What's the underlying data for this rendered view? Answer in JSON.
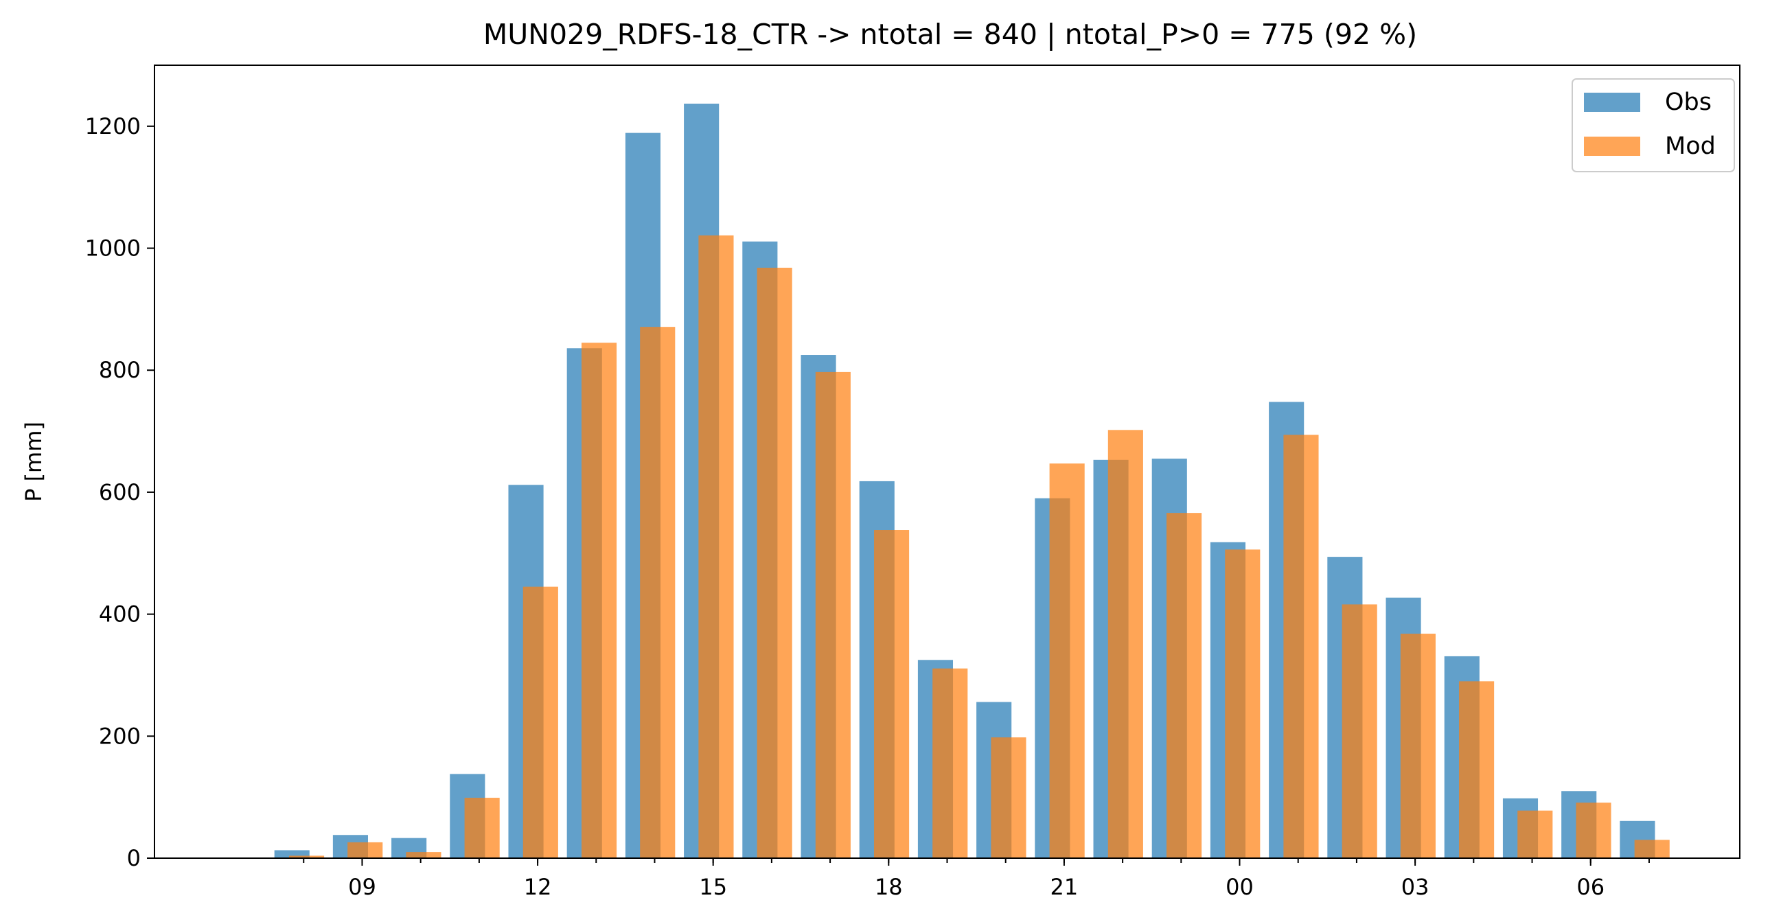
{
  "chart_data": {
    "type": "bar",
    "title": "MUN029_RDFS-18_CTR -> ntotal = 840 | ntotal_P>0 = 775 (92 %)",
    "xlabel": "",
    "ylabel": "P [mm]",
    "ylim": [
      0,
      1300
    ],
    "yticks": [
      0,
      200,
      400,
      600,
      800,
      1000,
      1200
    ],
    "x_hours": [
      8,
      9,
      10,
      11,
      12,
      13,
      14,
      15,
      16,
      17,
      18,
      19,
      20,
      21,
      22,
      23,
      24,
      25,
      26,
      27,
      28,
      29,
      30,
      31
    ],
    "x_start_hour": 8,
    "xtick_hours": [
      9,
      12,
      15,
      18,
      21,
      24,
      27,
      30
    ],
    "xtick_labels": [
      "09",
      "12",
      "15",
      "18",
      "21",
      "00",
      "03",
      "06"
    ],
    "series": [
      {
        "name": "Obs",
        "color": "#1f77b4",
        "values": [
          13,
          38,
          33,
          138,
          612,
          836,
          1189,
          1237,
          1011,
          825,
          618,
          325,
          256,
          590,
          653,
          655,
          518,
          748,
          494,
          427,
          331,
          98,
          110,
          61
        ]
      },
      {
        "name": "Mod",
        "color": "#ff7f0e",
        "values": [
          4,
          26,
          10,
          99,
          445,
          845,
          871,
          1021,
          968,
          797,
          538,
          311,
          198,
          647,
          702,
          566,
          506,
          694,
          416,
          368,
          290,
          78,
          91,
          30
        ]
      }
    ],
    "legend_position": "top-right",
    "grid": false
  }
}
